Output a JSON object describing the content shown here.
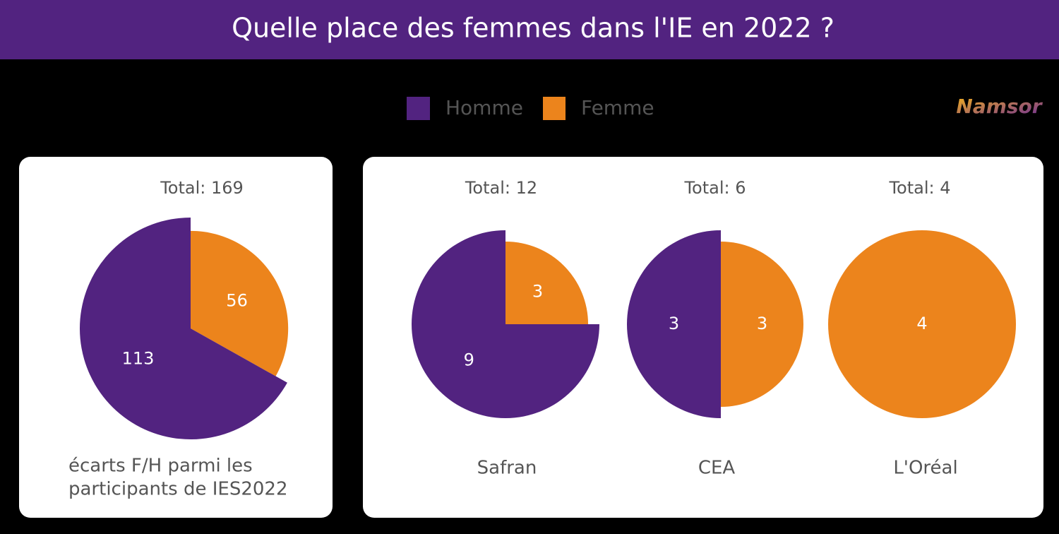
{
  "title": "Quelle place des femmes dans l'IE en 2022 ?",
  "logo": "Namsor",
  "chart_data": [
    {
      "type": "pie",
      "title": "Total: 169",
      "caption": [
        "écarts F/H parmi les",
        "participants de IES2022"
      ],
      "categories": [
        "Homme",
        "Femme"
      ],
      "values": [
        113,
        56
      ],
      "colors": [
        "#522380",
        "#ec841c"
      ]
    },
    {
      "type": "pie",
      "title": "Total: 12",
      "caption": [
        "Safran"
      ],
      "categories": [
        "Homme",
        "Femme"
      ],
      "values": [
        9,
        3
      ],
      "colors": [
        "#522380",
        "#ec841c"
      ]
    },
    {
      "type": "pie",
      "title": "Total: 6",
      "caption": [
        "CEA"
      ],
      "categories": [
        "Homme",
        "Femme"
      ],
      "values": [
        3,
        3
      ],
      "colors": [
        "#522380",
        "#ec841c"
      ]
    },
    {
      "type": "pie",
      "title": "Total: 4",
      "caption": [
        "L'Oréal"
      ],
      "categories": [
        "Homme",
        "Femme"
      ],
      "values": [
        0,
        4
      ],
      "colors": [
        "#522380",
        "#ec841c"
      ]
    }
  ]
}
